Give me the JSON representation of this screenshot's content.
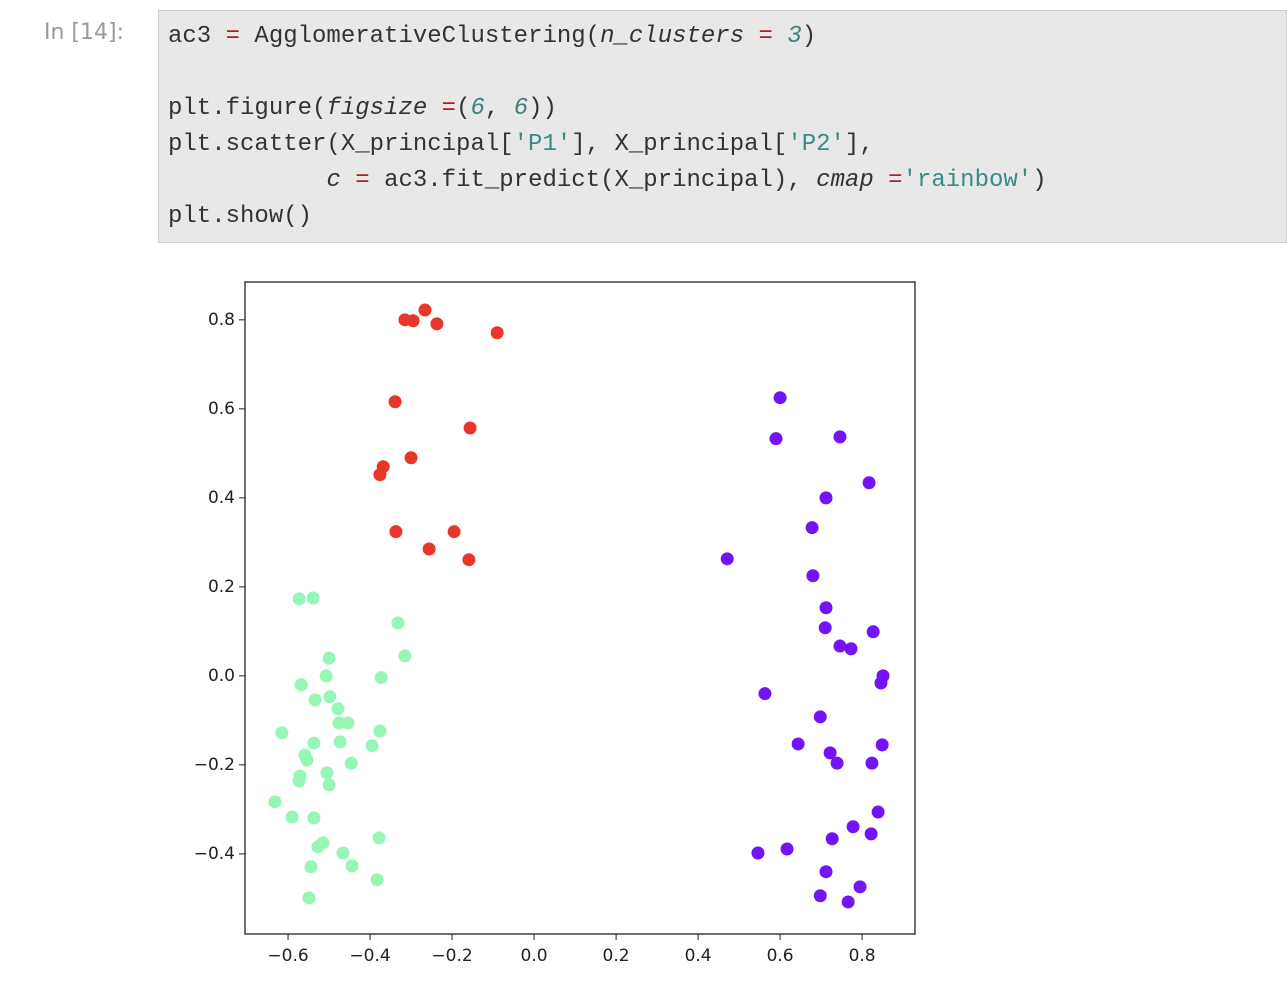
{
  "prompt": "In [14]:",
  "code": {
    "lines": [
      [
        {
          "text": "ac3 "
        },
        {
          "text": "=",
          "color": "#aa2222"
        },
        {
          "text": " AgglomerativeClustering("
        },
        {
          "text": "n_clusters",
          "italic": true
        },
        {
          "text": " = ",
          "color": "#aa2222"
        },
        {
          "text": "3",
          "color": "#408080",
          "italic": true
        },
        {
          "text": ")"
        }
      ],
      [],
      [
        {
          "text": "plt.figure("
        },
        {
          "text": "figsize",
          "italic": true
        },
        {
          "text": " =",
          "color": "#aa2222"
        },
        {
          "text": "("
        },
        {
          "text": "6",
          "color": "#408080",
          "italic": true
        },
        {
          "text": ", "
        },
        {
          "text": "6",
          "color": "#408080",
          "italic": true
        },
        {
          "text": "))"
        }
      ],
      [
        {
          "text": "plt.scatter(X_principal["
        },
        {
          "text": "'P1'",
          "color": "#3a8a8a"
        },
        {
          "text": "], X_principal["
        },
        {
          "text": "'P2'",
          "color": "#3a8a8a"
        },
        {
          "text": "],"
        }
      ],
      [
        {
          "text": "           "
        },
        {
          "text": "c",
          "italic": true
        },
        {
          "text": " = ",
          "color": "#aa2222"
        },
        {
          "text": "ac3.fit_predict(X_principal), "
        },
        {
          "text": "cmap",
          "italic": true
        },
        {
          "text": " =",
          "color": "#aa2222"
        },
        {
          "text": "'rainbow'",
          "color": "#3a8a8a"
        },
        {
          "text": ")"
        }
      ],
      [
        {
          "text": "plt.show()"
        }
      ]
    ]
  },
  "chart_data": {
    "type": "scatter",
    "xlim": [
      -0.705,
      0.929
    ],
    "ylim": [
      -0.58,
      0.885
    ],
    "xticks": [
      {
        "value": -0.6,
        "label": "−0.6"
      },
      {
        "value": -0.4,
        "label": "−0.4"
      },
      {
        "value": -0.2,
        "label": "−0.2"
      },
      {
        "value": 0,
        "label": "0.0"
      },
      0.2,
      0.4,
      0.6,
      0.8
    ],
    "yticks": [
      {
        "value": -0.4,
        "label": "−0.4"
      },
      {
        "value": -0.2,
        "label": "−0.2"
      },
      {
        "value": 0,
        "label": "0.0"
      },
      0.2,
      0.4,
      0.6,
      0.8
    ],
    "series": [
      {
        "color": "#e8362a",
        "x": [
          -0.315,
          -0.295,
          -0.266,
          -0.237,
          -0.09,
          -0.339,
          -0.156,
          -0.368,
          -0.376,
          -0.3,
          -0.337,
          -0.195,
          -0.256,
          -0.159
        ],
        "values": [
          0.8,
          0.798,
          0.822,
          0.791,
          0.771,
          0.616,
          0.557,
          0.47,
          0.452,
          0.49,
          0.324,
          0.324,
          0.285,
          0.261
        ]
      },
      {
        "color": "#7414f5",
        "x": [
          0.6,
          0.59,
          0.746,
          0.817,
          0.712,
          0.678,
          0.471,
          0.68,
          0.712,
          0.71,
          0.827,
          0.746,
          0.773,
          0.851,
          0.846,
          0.563,
          0.698,
          0.644,
          0.849,
          0.722,
          0.739,
          0.824,
          0.839,
          0.778,
          0.822,
          0.727,
          0.546,
          0.617,
          0.712,
          0.795,
          0.698,
          0.766
        ],
        "values": [
          0.625,
          0.533,
          0.537,
          0.434,
          0.4,
          0.333,
          0.263,
          0.225,
          0.153,
          0.108,
          0.099,
          0.067,
          0.061,
          0.0,
          -0.016,
          -0.04,
          -0.092,
          -0.153,
          -0.155,
          -0.173,
          -0.196,
          -0.196,
          -0.306,
          -0.339,
          -0.355,
          -0.366,
          -0.398,
          -0.389,
          -0.44,
          -0.474,
          -0.494,
          -0.508
        ]
      },
      {
        "color": "#96f6b5",
        "x": [
          -0.573,
          -0.539,
          -0.332,
          -0.315,
          -0.5,
          -0.568,
          -0.507,
          -0.373,
          -0.534,
          -0.498,
          -0.478,
          -0.476,
          -0.454,
          -0.615,
          -0.376,
          -0.537,
          -0.473,
          -0.395,
          -0.559,
          -0.554,
          -0.446,
          -0.571,
          -0.505,
          -0.573,
          -0.5,
          -0.632,
          -0.59,
          -0.537,
          -0.515,
          -0.527,
          -0.378,
          -0.466,
          -0.544,
          -0.444,
          -0.383,
          -0.549
        ],
        "values": [
          0.173,
          0.175,
          0.119,
          0.045,
          0.04,
          -0.02,
          0.0,
          -0.004,
          -0.054,
          -0.047,
          -0.074,
          -0.106,
          -0.106,
          -0.128,
          -0.124,
          -0.151,
          -0.148,
          -0.157,
          -0.178,
          -0.189,
          -0.196,
          -0.225,
          -0.218,
          -0.236,
          -0.245,
          -0.283,
          -0.317,
          -0.319,
          -0.375,
          -0.384,
          -0.364,
          -0.398,
          -0.429,
          -0.427,
          -0.458,
          -0.499
        ]
      }
    ]
  }
}
